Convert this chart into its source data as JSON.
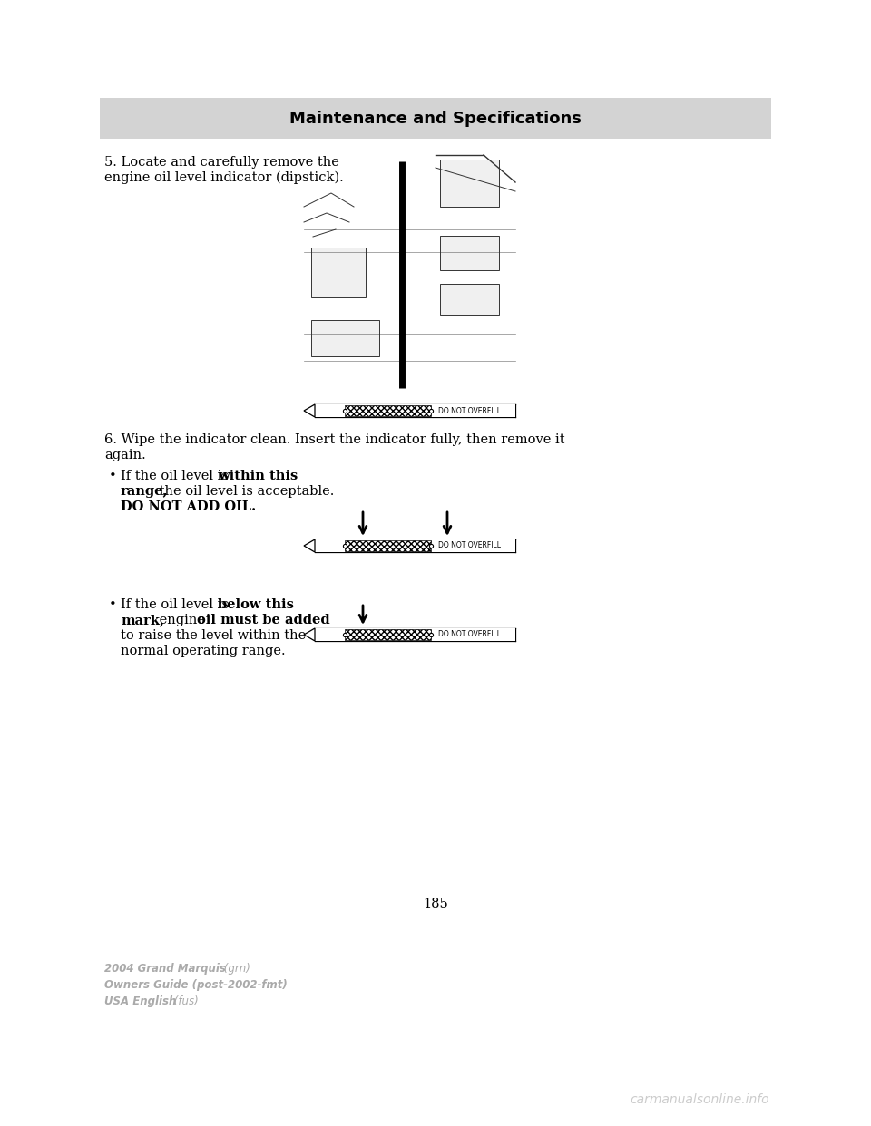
{
  "page_bg": "#ffffff",
  "header_bg": "#d0d0d0",
  "header_text": "Maintenance and Specifications",
  "step5_text_1": "5. Locate and carefully remove the",
  "step5_text_2": "engine oil level indicator (dipstick).",
  "step6_text_1": "6. Wipe the indicator clean. Insert the indicator fully, then remove it",
  "step6_text_2": "again.",
  "bullet1_seg1": "If the oil level is ",
  "bullet1_seg2": "within this",
  "bullet1_seg3": "range,",
  "bullet1_seg4": " the oil level is acceptable.",
  "bullet1_seg5": "DO NOT ADD OIL.",
  "bullet2_seg1": "If the oil level is ",
  "bullet2_seg2": "below this",
  "bullet2_seg3": "mark,",
  "bullet2_seg4": " engine ",
  "bullet2_seg5": "oil must be added",
  "bullet2_seg6": "to raise the level within the",
  "bullet2_seg7": "normal operating range.",
  "do_not_overfill": "DO NOT OVERFILL",
  "page_number": "185",
  "footer_line1_bold": "2004 Grand Marquis",
  "footer_line1_italic": " (grn)",
  "footer_line2": "Owners Guide (post-2002-fmt)",
  "footer_line3_bold": "USA English",
  "footer_line3_italic": " (fus)",
  "watermark": "carmanualsonline.info",
  "text_color": "#000000",
  "gray_text": "#aaaaaa",
  "watermark_color": "#cccccc"
}
